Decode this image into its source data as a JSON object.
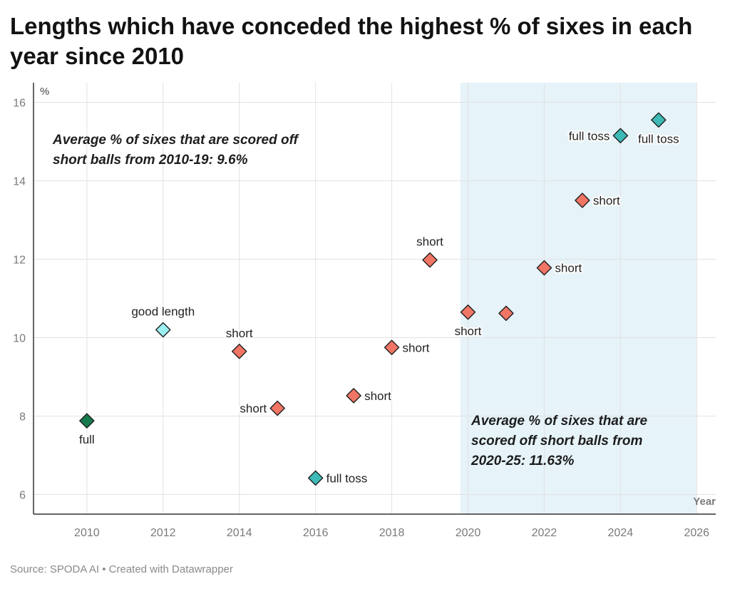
{
  "chart_data": {
    "type": "scatter",
    "title": "Lengths which have conceded the highest % of sixes in each year since 2010",
    "xlabel": "Year",
    "ylabel": "%",
    "xlim": [
      2008.6,
      2026.5
    ],
    "ylim": [
      5.5,
      16.5
    ],
    "x_ticks": [
      2010,
      2012,
      2014,
      2016,
      2018,
      2020,
      2022,
      2024,
      2026
    ],
    "y_ticks": [
      6,
      8,
      10,
      12,
      14,
      16
    ],
    "grid": true,
    "highlight_range": [
      2019.8,
      2026
    ],
    "colors": {
      "short": "#f07565",
      "full toss": "#3dbab5",
      "full": "#167a4c",
      "good length": "#9df0f2",
      "highlight": "#e6f3f9"
    },
    "points": [
      {
        "x": 2010,
        "y": 7.88,
        "length": "full",
        "label": "full",
        "pos": "below"
      },
      {
        "x": 2012,
        "y": 10.2,
        "length": "good length",
        "label": "good length",
        "pos": "above"
      },
      {
        "x": 2014,
        "y": 9.65,
        "length": "short",
        "label": "short",
        "pos": "above"
      },
      {
        "x": 2015,
        "y": 8.2,
        "length": "short",
        "label": "short",
        "pos": "left"
      },
      {
        "x": 2016,
        "y": 6.42,
        "length": "full toss",
        "label": "full toss",
        "pos": "right"
      },
      {
        "x": 2017,
        "y": 8.52,
        "length": "short",
        "label": "short",
        "pos": "right"
      },
      {
        "x": 2018,
        "y": 9.75,
        "length": "short",
        "label": "short",
        "pos": "right"
      },
      {
        "x": 2019,
        "y": 11.98,
        "length": "short",
        "label": "short",
        "pos": "above"
      },
      {
        "x": 2020,
        "y": 10.65,
        "length": "short",
        "label": "short",
        "pos": "below"
      },
      {
        "x": 2021,
        "y": 10.62,
        "length": "short",
        "label": "",
        "pos": "none"
      },
      {
        "x": 2022,
        "y": 11.78,
        "length": "short",
        "label": "short",
        "pos": "right"
      },
      {
        "x": 2023,
        "y": 13.5,
        "length": "short",
        "label": "short",
        "pos": "right"
      },
      {
        "x": 2024,
        "y": 15.15,
        "length": "full toss",
        "label": "full toss",
        "pos": "left"
      },
      {
        "x": 2025,
        "y": 15.55,
        "length": "full toss",
        "label": "full toss",
        "pos": "below"
      }
    ],
    "annotations": [
      {
        "lines": [
          "Average % of sixes that are scored off",
          "short balls from 2010-19: 9.6%"
        ]
      },
      {
        "lines": [
          "Average % of sixes that are",
          "scored off short balls from",
          "2020-25: 11.63%"
        ]
      }
    ]
  },
  "footer": "Source: SPODA AI • Created with Datawrapper"
}
